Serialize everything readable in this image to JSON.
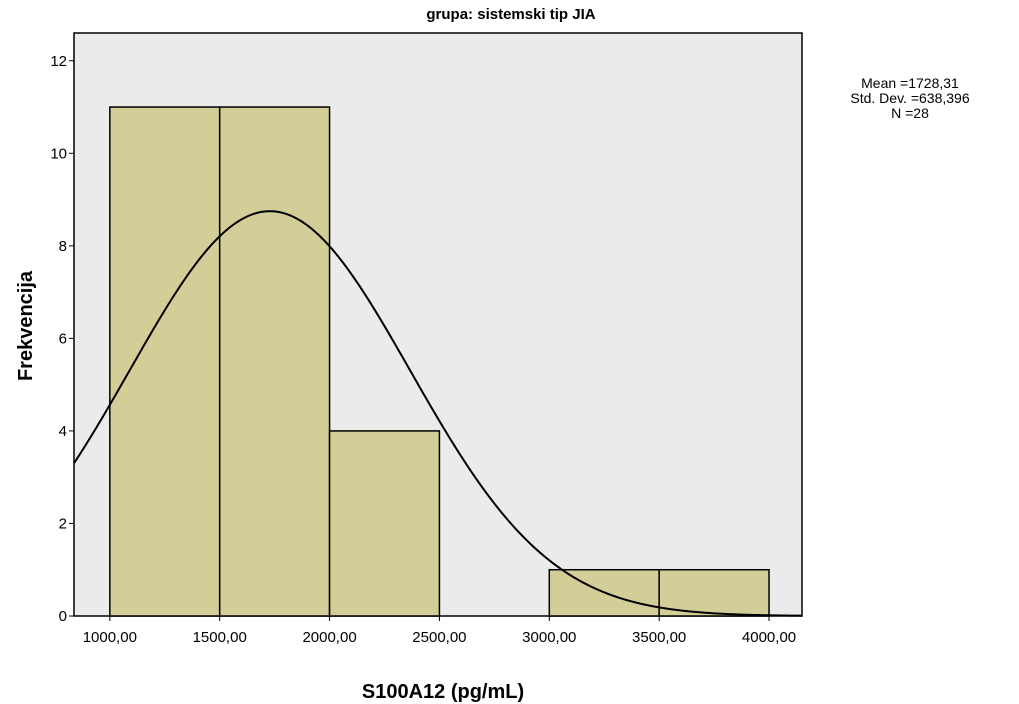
{
  "chart_data": {
    "type": "bar",
    "subtype": "histogram",
    "title": "grupa: sistemski tip JIA",
    "xlabel": "S100A12 (pg/mL)",
    "ylabel": "Frekvencija",
    "bins": [
      {
        "start": 1000,
        "end": 1500,
        "count": 11
      },
      {
        "start": 1500,
        "end": 2000,
        "count": 11
      },
      {
        "start": 2000,
        "end": 2500,
        "count": 4
      },
      {
        "start": 2500,
        "end": 3000,
        "count": 0
      },
      {
        "start": 3000,
        "end": 3500,
        "count": 1
      },
      {
        "start": 3500,
        "end": 4000,
        "count": 1
      }
    ],
    "xlim": [
      837,
      4150
    ],
    "ylim": [
      0,
      12.6
    ],
    "x_ticks": [
      1000,
      1500,
      2000,
      2500,
      3000,
      3500,
      4000
    ],
    "x_tick_labels": [
      "1000,00",
      "1500,00",
      "2000,00",
      "2500,00",
      "3000,00",
      "3500,00",
      "4000,00"
    ],
    "y_ticks": [
      0,
      2,
      4,
      6,
      8,
      10,
      12
    ],
    "y_tick_labels": [
      "0",
      "2",
      "4",
      "6",
      "8",
      "10",
      "12"
    ],
    "normal_curve": {
      "mean": 1728.31,
      "std": 638.396,
      "n": 28,
      "bin_width": 500
    },
    "stats_text": [
      "Mean =1728,31",
      "Std. Dev. =638,396",
      "N =28"
    ],
    "grid": false,
    "legend": "none"
  },
  "colors": {
    "plot_background": "#ebebeb",
    "bar_fill": "#d3ce98",
    "bar_stroke": "#000000",
    "curve": "#000000",
    "axis": "#000000"
  }
}
